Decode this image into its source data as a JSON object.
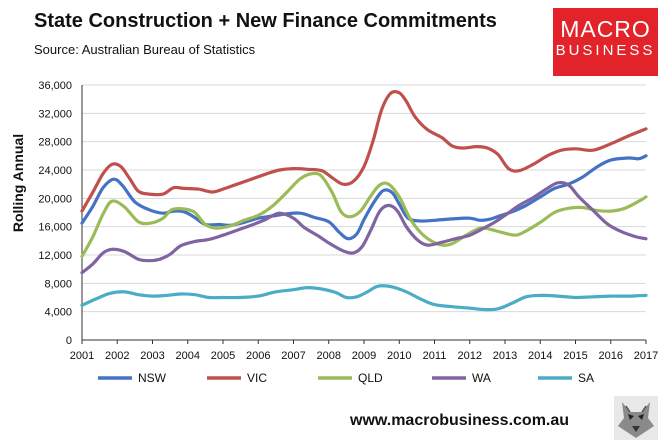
{
  "header": {
    "title": "State Construction + New Finance Commitments",
    "subtitle": "Source: Australian Bureau of Statistics"
  },
  "logo": {
    "line1": "MACRO",
    "line2": "BUSINESS"
  },
  "footer": {
    "url": "www.macrobusiness.com.au"
  },
  "chart_data": {
    "type": "line",
    "title": "State Construction + New Finance Commitments",
    "ylabel": "Rolling Annual",
    "xlabel": "",
    "xlim": [
      2001,
      2017
    ],
    "ylim": [
      0,
      36000
    ],
    "x_ticks": [
      "2001",
      "2002",
      "2003",
      "2004",
      "2005",
      "2006",
      "2007",
      "2008",
      "2009",
      "2010",
      "2011",
      "2012",
      "2013",
      "2014",
      "2015",
      "2016",
      "2017"
    ],
    "y_ticks": [
      "0",
      "4,000",
      "8,000",
      "12,000",
      "16,000",
      "20,000",
      "24,000",
      "28,000",
      "32,000",
      "36,000"
    ],
    "y_tick_values": [
      0,
      4000,
      8000,
      12000,
      16000,
      20000,
      24000,
      28000,
      32000,
      36000
    ],
    "grid": true,
    "legend_position": "bottom",
    "series": [
      {
        "name": "NSW",
        "color": "#4472c4",
        "points": [
          [
            2001.0,
            16500
          ],
          [
            2001.3,
            18800
          ],
          [
            2001.6,
            21500
          ],
          [
            2001.9,
            22700
          ],
          [
            2002.15,
            21800
          ],
          [
            2002.5,
            19500
          ],
          [
            2002.9,
            18400
          ],
          [
            2003.3,
            17900
          ],
          [
            2003.6,
            18200
          ],
          [
            2003.9,
            18100
          ],
          [
            2004.2,
            17300
          ],
          [
            2004.5,
            16300
          ],
          [
            2004.9,
            16300
          ],
          [
            2005.2,
            16200
          ],
          [
            2005.6,
            16600
          ],
          [
            2006.0,
            17200
          ],
          [
            2006.4,
            17500
          ],
          [
            2006.8,
            17800
          ],
          [
            2007.2,
            17900
          ],
          [
            2007.6,
            17300
          ],
          [
            2008.0,
            16700
          ],
          [
            2008.3,
            15200
          ],
          [
            2008.55,
            14300
          ],
          [
            2008.8,
            15000
          ],
          [
            2009.0,
            17000
          ],
          [
            2009.3,
            19600
          ],
          [
            2009.55,
            21100
          ],
          [
            2009.8,
            20800
          ],
          [
            2010.0,
            19200
          ],
          [
            2010.25,
            17200
          ],
          [
            2010.6,
            16800
          ],
          [
            2011.0,
            16900
          ],
          [
            2011.5,
            17100
          ],
          [
            2012.0,
            17200
          ],
          [
            2012.3,
            16900
          ],
          [
            2012.6,
            17100
          ],
          [
            2012.9,
            17600
          ],
          [
            2013.2,
            18100
          ],
          [
            2013.6,
            19000
          ],
          [
            2014.0,
            20200
          ],
          [
            2014.4,
            21400
          ],
          [
            2014.8,
            22000
          ],
          [
            2015.2,
            23000
          ],
          [
            2015.6,
            24400
          ],
          [
            2016.0,
            25400
          ],
          [
            2016.5,
            25700
          ],
          [
            2016.8,
            25600
          ],
          [
            2017.0,
            26000
          ]
        ]
      },
      {
        "name": "VIC",
        "color": "#c0504d",
        "points": [
          [
            2001.0,
            18200
          ],
          [
            2001.3,
            20800
          ],
          [
            2001.6,
            23500
          ],
          [
            2001.85,
            24800
          ],
          [
            2002.1,
            24500
          ],
          [
            2002.35,
            22800
          ],
          [
            2002.6,
            21000
          ],
          [
            2002.9,
            20600
          ],
          [
            2003.3,
            20600
          ],
          [
            2003.6,
            21500
          ],
          [
            2003.9,
            21400
          ],
          [
            2004.3,
            21300
          ],
          [
            2004.7,
            20900
          ],
          [
            2005.0,
            21300
          ],
          [
            2005.4,
            22000
          ],
          [
            2005.8,
            22700
          ],
          [
            2006.2,
            23400
          ],
          [
            2006.6,
            24000
          ],
          [
            2007.0,
            24200
          ],
          [
            2007.4,
            24100
          ],
          [
            2007.8,
            23900
          ],
          [
            2008.1,
            22900
          ],
          [
            2008.4,
            22000
          ],
          [
            2008.7,
            22400
          ],
          [
            2009.0,
            24500
          ],
          [
            2009.25,
            28000
          ],
          [
            2009.5,
            32500
          ],
          [
            2009.75,
            34800
          ],
          [
            2010.0,
            34900
          ],
          [
            2010.2,
            33700
          ],
          [
            2010.45,
            31500
          ],
          [
            2010.8,
            29700
          ],
          [
            2011.2,
            28600
          ],
          [
            2011.5,
            27400
          ],
          [
            2011.8,
            27100
          ],
          [
            2012.2,
            27300
          ],
          [
            2012.5,
            27100
          ],
          [
            2012.8,
            26200
          ],
          [
            2013.1,
            24200
          ],
          [
            2013.4,
            23900
          ],
          [
            2013.8,
            24800
          ],
          [
            2014.2,
            26000
          ],
          [
            2014.6,
            26800
          ],
          [
            2015.0,
            27000
          ],
          [
            2015.5,
            26800
          ],
          [
            2016.0,
            27700
          ],
          [
            2016.5,
            28800
          ],
          [
            2017.0,
            29800
          ]
        ]
      },
      {
        "name": "QLD",
        "color": "#9bbb59",
        "points": [
          [
            2001.0,
            11800
          ],
          [
            2001.3,
            14500
          ],
          [
            2001.6,
            17800
          ],
          [
            2001.85,
            19600
          ],
          [
            2002.2,
            18800
          ],
          [
            2002.6,
            16700
          ],
          [
            2002.95,
            16500
          ],
          [
            2003.3,
            17200
          ],
          [
            2003.55,
            18400
          ],
          [
            2003.9,
            18500
          ],
          [
            2004.2,
            18000
          ],
          [
            2004.5,
            16300
          ],
          [
            2004.8,
            15800
          ],
          [
            2005.2,
            16100
          ],
          [
            2005.6,
            16900
          ],
          [
            2006.0,
            17600
          ],
          [
            2006.4,
            18900
          ],
          [
            2006.8,
            20800
          ],
          [
            2007.2,
            22800
          ],
          [
            2007.55,
            23500
          ],
          [
            2007.8,
            23100
          ],
          [
            2008.1,
            20800
          ],
          [
            2008.35,
            18100
          ],
          [
            2008.6,
            17400
          ],
          [
            2008.9,
            18200
          ],
          [
            2009.2,
            20400
          ],
          [
            2009.45,
            21900
          ],
          [
            2009.7,
            22000
          ],
          [
            2010.0,
            20200
          ],
          [
            2010.3,
            17200
          ],
          [
            2010.6,
            15200
          ],
          [
            2010.9,
            14000
          ],
          [
            2011.2,
            13400
          ],
          [
            2011.5,
            13600
          ],
          [
            2011.9,
            14800
          ],
          [
            2012.3,
            15800
          ],
          [
            2012.6,
            15600
          ],
          [
            2012.9,
            15200
          ],
          [
            2013.3,
            14800
          ],
          [
            2013.6,
            15400
          ],
          [
            2014.0,
            16600
          ],
          [
            2014.4,
            18000
          ],
          [
            2014.8,
            18600
          ],
          [
            2015.2,
            18700
          ],
          [
            2015.6,
            18300
          ],
          [
            2016.0,
            18200
          ],
          [
            2016.4,
            18600
          ],
          [
            2016.8,
            19600
          ],
          [
            2017.0,
            20200
          ]
        ]
      },
      {
        "name": "WA",
        "color": "#8064a2",
        "points": [
          [
            2001.0,
            9500
          ],
          [
            2001.3,
            10700
          ],
          [
            2001.6,
            12300
          ],
          [
            2001.85,
            12800
          ],
          [
            2002.2,
            12500
          ],
          [
            2002.6,
            11400
          ],
          [
            2002.9,
            11200
          ],
          [
            2003.2,
            11400
          ],
          [
            2003.5,
            12100
          ],
          [
            2003.8,
            13300
          ],
          [
            2004.2,
            13900
          ],
          [
            2004.6,
            14200
          ],
          [
            2005.0,
            14800
          ],
          [
            2005.4,
            15500
          ],
          [
            2005.8,
            16200
          ],
          [
            2006.2,
            17000
          ],
          [
            2006.6,
            17900
          ],
          [
            2007.0,
            17200
          ],
          [
            2007.3,
            15900
          ],
          [
            2007.7,
            14700
          ],
          [
            2008.0,
            13700
          ],
          [
            2008.4,
            12600
          ],
          [
            2008.7,
            12300
          ],
          [
            2008.95,
            13200
          ],
          [
            2009.2,
            15600
          ],
          [
            2009.45,
            18200
          ],
          [
            2009.7,
            19000
          ],
          [
            2009.95,
            18200
          ],
          [
            2010.2,
            16000
          ],
          [
            2010.5,
            14200
          ],
          [
            2010.8,
            13400
          ],
          [
            2011.2,
            13800
          ],
          [
            2011.6,
            14300
          ],
          [
            2012.0,
            14800
          ],
          [
            2012.4,
            15800
          ],
          [
            2012.7,
            16600
          ],
          [
            2013.0,
            17600
          ],
          [
            2013.4,
            19000
          ],
          [
            2013.8,
            20100
          ],
          [
            2014.2,
            21400
          ],
          [
            2014.5,
            22200
          ],
          [
            2014.8,
            21900
          ],
          [
            2015.1,
            20200
          ],
          [
            2015.5,
            18300
          ],
          [
            2015.9,
            16400
          ],
          [
            2016.3,
            15300
          ],
          [
            2016.7,
            14600
          ],
          [
            2017.0,
            14300
          ]
        ]
      },
      {
        "name": "SA",
        "color": "#4bacc6",
        "points": [
          [
            2001.0,
            4900
          ],
          [
            2001.4,
            5800
          ],
          [
            2001.8,
            6600
          ],
          [
            2002.2,
            6800
          ],
          [
            2002.6,
            6400
          ],
          [
            2003.0,
            6200
          ],
          [
            2003.4,
            6300
          ],
          [
            2003.8,
            6500
          ],
          [
            2004.2,
            6400
          ],
          [
            2004.6,
            6000
          ],
          [
            2005.0,
            6000
          ],
          [
            2005.5,
            6000
          ],
          [
            2006.0,
            6200
          ],
          [
            2006.5,
            6800
          ],
          [
            2007.0,
            7100
          ],
          [
            2007.4,
            7400
          ],
          [
            2007.8,
            7200
          ],
          [
            2008.2,
            6700
          ],
          [
            2008.5,
            6000
          ],
          [
            2008.8,
            6100
          ],
          [
            2009.1,
            6800
          ],
          [
            2009.4,
            7600
          ],
          [
            2009.8,
            7500
          ],
          [
            2010.2,
            6800
          ],
          [
            2010.6,
            5800
          ],
          [
            2011.0,
            5000
          ],
          [
            2011.5,
            4700
          ],
          [
            2012.0,
            4500
          ],
          [
            2012.4,
            4300
          ],
          [
            2012.8,
            4400
          ],
          [
            2013.2,
            5200
          ],
          [
            2013.6,
            6100
          ],
          [
            2014.0,
            6300
          ],
          [
            2014.5,
            6200
          ],
          [
            2015.0,
            6000
          ],
          [
            2015.5,
            6100
          ],
          [
            2016.0,
            6200
          ],
          [
            2016.5,
            6200
          ],
          [
            2017.0,
            6300
          ]
        ]
      }
    ]
  }
}
